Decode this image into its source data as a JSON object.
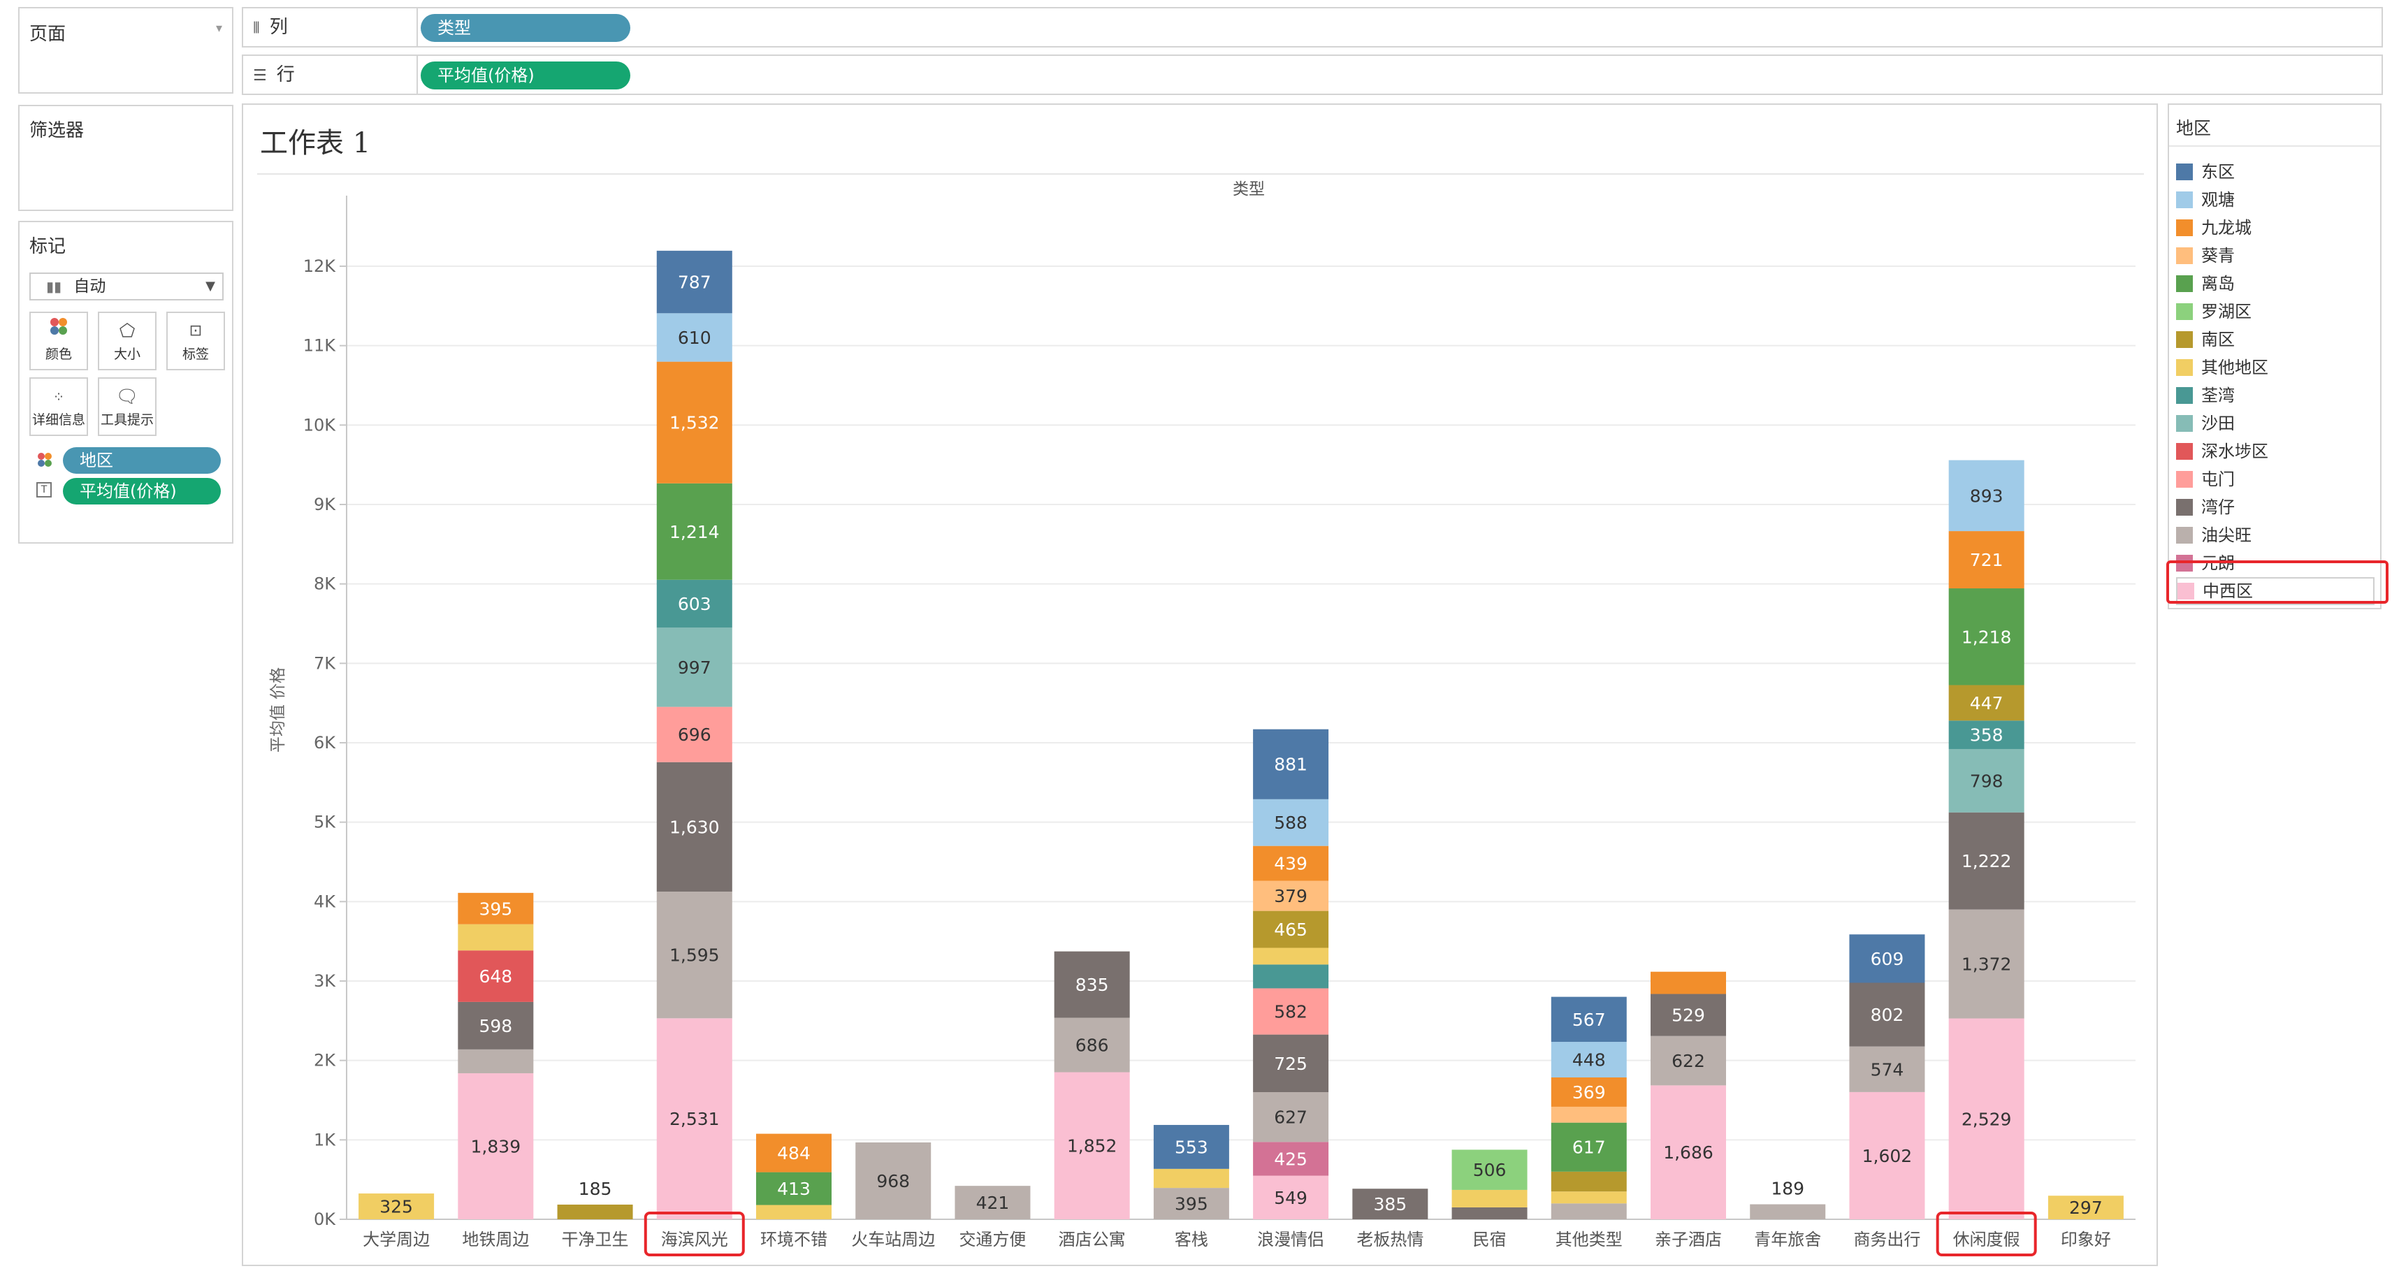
{
  "shelves": {
    "pages_title": "页面",
    "columns_label": "列",
    "columns_pill": "类型",
    "rows_label": "行",
    "rows_pill": "平均值(价格)"
  },
  "filters": {
    "title": "筛选器"
  },
  "marks": {
    "title": "标记",
    "type_label": "自动",
    "buttons": [
      "颜色",
      "大小",
      "标签",
      "详细信息",
      "工具提示"
    ],
    "fields": [
      {
        "label": "地区",
        "kind": "color"
      },
      {
        "label": "平均值(价格)",
        "kind": "label"
      }
    ]
  },
  "sheet": {
    "title": "工作表 1",
    "column_header": "类型",
    "y_axis_title": "平均值 价格"
  },
  "legend": {
    "title": "地区",
    "highlighted": "中西区",
    "items": [
      {
        "name": "东区",
        "color": "#4e79a7"
      },
      {
        "name": "观塘",
        "color": "#a0cbe8"
      },
      {
        "name": "九龙城",
        "color": "#f28e2b"
      },
      {
        "name": "葵青",
        "color": "#ffbe7d"
      },
      {
        "name": "离岛",
        "color": "#59a14f"
      },
      {
        "name": "罗湖区",
        "color": "#8cd17d"
      },
      {
        "name": "南区",
        "color": "#b6992d"
      },
      {
        "name": "其他地区",
        "color": "#f1ce63"
      },
      {
        "name": "荃湾",
        "color": "#499894"
      },
      {
        "name": "沙田",
        "color": "#86bcb6"
      },
      {
        "name": "深水埗区",
        "color": "#e15759"
      },
      {
        "name": "屯门",
        "color": "#ff9d9a"
      },
      {
        "name": "湾仔",
        "color": "#79706e"
      },
      {
        "name": "油尖旺",
        "color": "#bab0ac"
      },
      {
        "name": "元朗",
        "color": "#d37295"
      },
      {
        "name": "中西区",
        "color": "#fabfd2"
      }
    ]
  },
  "chart_data": {
    "type": "bar",
    "stacked": true,
    "ylim": [
      0,
      12500
    ],
    "y_ticks": [
      0,
      1000,
      2000,
      3000,
      4000,
      5000,
      6000,
      7000,
      8000,
      9000,
      10000,
      11000,
      12000
    ],
    "y_tick_labels": [
      "0K",
      "1K",
      "2K",
      "3K",
      "4K",
      "5K",
      "6K",
      "7K",
      "8K",
      "9K",
      "10K",
      "11K",
      "12K"
    ],
    "grid": "horizontal",
    "highlighted_categories": [
      "海滨风光",
      "休闲度假"
    ],
    "categories": [
      {
        "name": "大学周边",
        "segments": [
          {
            "region": "其他地区",
            "value": 325,
            "label": "325"
          }
        ]
      },
      {
        "name": "地铁周边",
        "segments": [
          {
            "region": "中西区",
            "value": 1839,
            "label": "1,839"
          },
          {
            "region": "油尖旺",
            "value": 300
          },
          {
            "region": "湾仔",
            "value": 598,
            "label": "598"
          },
          {
            "region": "深水埗区",
            "value": 648,
            "label": "648"
          },
          {
            "region": "其他地区",
            "value": 330
          },
          {
            "region": "九龙城",
            "value": 395,
            "label": "395"
          }
        ]
      },
      {
        "name": "干净卫生",
        "segments": [
          {
            "region": "南区",
            "value": 185,
            "label": "185",
            "label_above": true
          }
        ]
      },
      {
        "name": "海滨风光",
        "segments": [
          {
            "region": "中西区",
            "value": 2531,
            "label": "2,531"
          },
          {
            "region": "油尖旺",
            "value": 1595,
            "label": "1,595"
          },
          {
            "region": "湾仔",
            "value": 1630,
            "label": "1,630"
          },
          {
            "region": "屯门",
            "value": 696,
            "label": "696"
          },
          {
            "region": "沙田",
            "value": 997,
            "label": "997"
          },
          {
            "region": "荃湾",
            "value": 603,
            "label": "603"
          },
          {
            "region": "离岛",
            "value": 1214,
            "label": "1,214"
          },
          {
            "region": "九龙城",
            "value": 1532,
            "label": "1,532"
          },
          {
            "region": "观塘",
            "value": 610,
            "label": "610"
          },
          {
            "region": "东区",
            "value": 787,
            "label": "787"
          }
        ]
      },
      {
        "name": "环境不错",
        "segments": [
          {
            "region": "其他地区",
            "value": 180
          },
          {
            "region": "离岛",
            "value": 413,
            "label": "413"
          },
          {
            "region": "九龙城",
            "value": 484,
            "label": "484"
          }
        ]
      },
      {
        "name": "火车站周边",
        "segments": [
          {
            "region": "油尖旺",
            "value": 968,
            "label": "968"
          }
        ]
      },
      {
        "name": "交通方便",
        "segments": [
          {
            "region": "油尖旺",
            "value": 421,
            "label": "421"
          }
        ]
      },
      {
        "name": "酒店公寓",
        "segments": [
          {
            "region": "中西区",
            "value": 1852,
            "label": "1,852"
          },
          {
            "region": "油尖旺",
            "value": 686,
            "label": "686"
          },
          {
            "region": "湾仔",
            "value": 835,
            "label": "835"
          }
        ]
      },
      {
        "name": "客栈",
        "segments": [
          {
            "region": "油尖旺",
            "value": 395,
            "label": "395"
          },
          {
            "region": "其他地区",
            "value": 240
          },
          {
            "region": "东区",
            "value": 553,
            "label": "553"
          }
        ]
      },
      {
        "name": "浪漫情侣",
        "segments": [
          {
            "region": "中西区",
            "value": 549,
            "label": "549"
          },
          {
            "region": "元朗",
            "value": 425,
            "label": "425"
          },
          {
            "region": "油尖旺",
            "value": 627,
            "label": "627"
          },
          {
            "region": "湾仔",
            "value": 725,
            "label": "725"
          },
          {
            "region": "屯门",
            "value": 582,
            "label": "582"
          },
          {
            "region": "荃湾",
            "value": 300
          },
          {
            "region": "其他地区",
            "value": 210
          },
          {
            "region": "南区",
            "value": 465,
            "label": "465"
          },
          {
            "region": "葵青",
            "value": 379,
            "label": "379"
          },
          {
            "region": "九龙城",
            "value": 439,
            "label": "439"
          },
          {
            "region": "观塘",
            "value": 588,
            "label": "588"
          },
          {
            "region": "东区",
            "value": 881,
            "label": "881"
          }
        ]
      },
      {
        "name": "老板热情",
        "segments": [
          {
            "region": "湾仔",
            "value": 385,
            "label": "385"
          }
        ]
      },
      {
        "name": "民宿",
        "segments": [
          {
            "region": "湾仔",
            "value": 150
          },
          {
            "region": "其他地区",
            "value": 220
          },
          {
            "region": "罗湖区",
            "value": 506,
            "label": "506"
          }
        ]
      },
      {
        "name": "其他类型",
        "segments": [
          {
            "region": "油尖旺",
            "value": 200
          },
          {
            "region": "其他地区",
            "value": 150
          },
          {
            "region": "南区",
            "value": 250
          },
          {
            "region": "离岛",
            "value": 617,
            "label": "617"
          },
          {
            "region": "葵青",
            "value": 200
          },
          {
            "region": "九龙城",
            "value": 369,
            "label": "369"
          },
          {
            "region": "观塘",
            "value": 448,
            "label": "448"
          },
          {
            "region": "东区",
            "value": 567,
            "label": "567"
          }
        ]
      },
      {
        "name": "亲子酒店",
        "segments": [
          {
            "region": "中西区",
            "value": 1686,
            "label": "1,686"
          },
          {
            "region": "油尖旺",
            "value": 622,
            "label": "622"
          },
          {
            "region": "湾仔",
            "value": 529,
            "label": "529"
          },
          {
            "region": "九龙城",
            "value": 280
          }
        ]
      },
      {
        "name": "青年旅舍",
        "segments": [
          {
            "region": "油尖旺",
            "value": 189,
            "label": "189",
            "label_above": true
          }
        ]
      },
      {
        "name": "商务出行",
        "segments": [
          {
            "region": "中西区",
            "value": 1602,
            "label": "1,602"
          },
          {
            "region": "油尖旺",
            "value": 574,
            "label": "574"
          },
          {
            "region": "湾仔",
            "value": 802,
            "label": "802"
          },
          {
            "region": "东区",
            "value": 609,
            "label": "609"
          }
        ]
      },
      {
        "name": "休闲度假",
        "segments": [
          {
            "region": "中西区",
            "value": 2529,
            "label": "2,529"
          },
          {
            "region": "油尖旺",
            "value": 1372,
            "label": "1,372"
          },
          {
            "region": "湾仔",
            "value": 1222,
            "label": "1,222"
          },
          {
            "region": "沙田",
            "value": 798,
            "label": "798"
          },
          {
            "region": "荃湾",
            "value": 358,
            "label": "358"
          },
          {
            "region": "南区",
            "value": 447,
            "label": "447"
          },
          {
            "region": "离岛",
            "value": 1218,
            "label": "1,218"
          },
          {
            "region": "九龙城",
            "value": 721,
            "label": "721"
          },
          {
            "region": "观塘",
            "value": 893,
            "label": "893"
          }
        ]
      },
      {
        "name": "印象好",
        "segments": [
          {
            "region": "其他地区",
            "value": 297,
            "label": "297"
          }
        ]
      }
    ]
  }
}
